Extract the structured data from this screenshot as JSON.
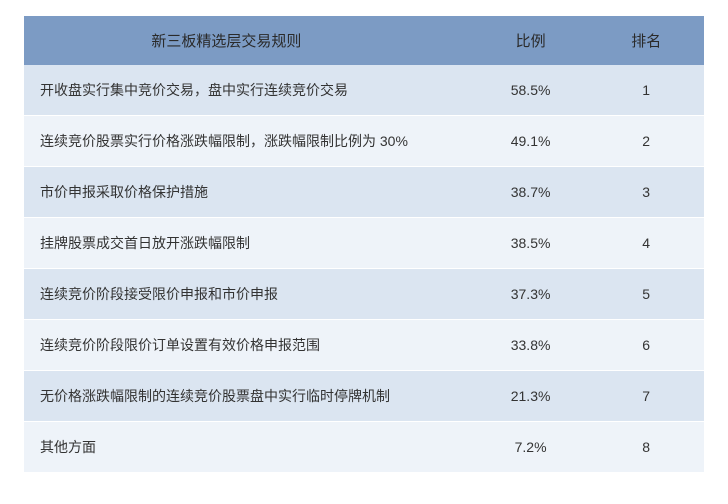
{
  "table": {
    "type": "table",
    "header_bg": "#7c9bc4",
    "row_bg_odd": "#dbe5f1",
    "row_bg_even": "#eef3f9",
    "header_fontsize": 15,
    "cell_fontsize": 14,
    "text_color": "#333333",
    "columns": [
      {
        "key": "rule",
        "label": "新三板精选层交易规则",
        "align": "left",
        "width": "66%"
      },
      {
        "key": "ratio",
        "label": "比例",
        "align": "center",
        "width": "17%"
      },
      {
        "key": "rank",
        "label": "排名",
        "align": "center",
        "width": "17%"
      }
    ],
    "rows": [
      {
        "rule": "开收盘实行集中竞价交易，盘中实行连续竞价交易",
        "ratio": "58.5%",
        "rank": "1"
      },
      {
        "rule": "连续竞价股票实行价格涨跌幅限制，涨跌幅限制比例为 30%",
        "ratio": "49.1%",
        "rank": "2"
      },
      {
        "rule": "市价申报采取价格保护措施",
        "ratio": "38.7%",
        "rank": "3"
      },
      {
        "rule": "挂牌股票成交首日放开涨跌幅限制",
        "ratio": "38.5%",
        "rank": "4"
      },
      {
        "rule": "连续竞价阶段接受限价申报和市价申报",
        "ratio": "37.3%",
        "rank": "5"
      },
      {
        "rule": "连续竞价阶段限价订单设置有效价格申报范围",
        "ratio": "33.8%",
        "rank": "6"
      },
      {
        "rule": "无价格涨跌幅限制的连续竞价股票盘中实行临时停牌机制",
        "ratio": "21.3%",
        "rank": "7"
      },
      {
        "rule": "其他方面",
        "ratio": "7.2%",
        "rank": "8"
      }
    ]
  }
}
